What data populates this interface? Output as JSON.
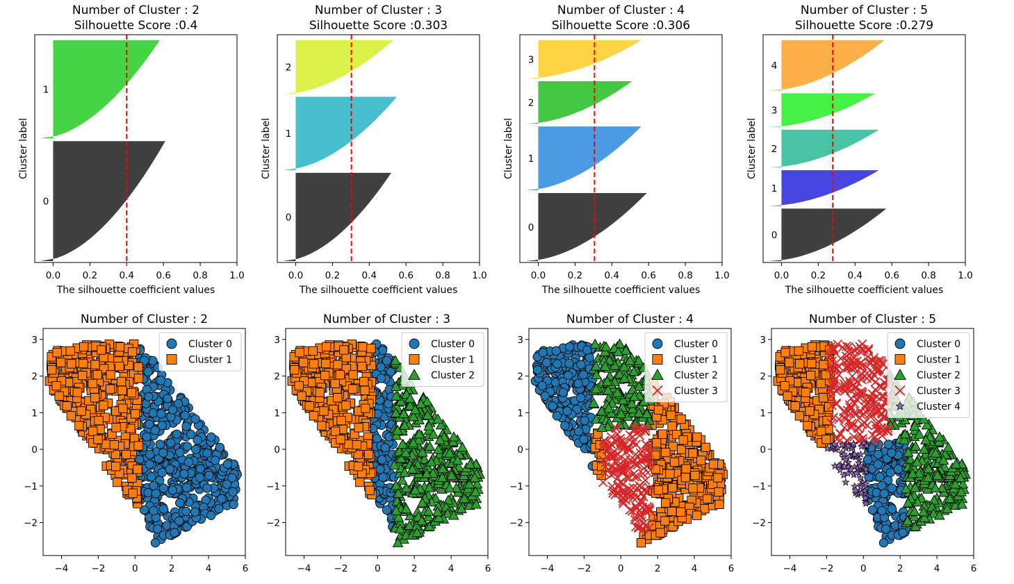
{
  "colors": {
    "cluster_marker_colors": [
      "#1f77b4",
      "#ff7f0e",
      "#2ca02c",
      "#d62728",
      "#9467bd"
    ],
    "threshold_line": "#ff0000"
  },
  "chart_data": [
    {
      "type": "area",
      "title_line1": "Number of Cluster : 2",
      "title_line2": "Silhouette Score :0.4",
      "xlabel": "The silhouette coefficient values",
      "ylabel": "Cluster label",
      "xlim": [
        -0.1,
        1.0
      ],
      "xticks": [
        "0.0",
        "0.2",
        "0.4",
        "0.6",
        "0.8",
        "1.0"
      ],
      "avg_score": 0.4,
      "series": [
        {
          "label": "0",
          "color": "#404040",
          "max_value": 0.61,
          "size": 0.55
        },
        {
          "label": "1",
          "color": "#44d444",
          "max_value": 0.58,
          "size": 0.45
        }
      ]
    },
    {
      "type": "area",
      "title_line1": "Number of Cluster : 3",
      "title_line2": "Silhouette Score :0.303",
      "xlabel": "The silhouette coefficient values",
      "ylabel": "Cluster label",
      "xlim": [
        -0.1,
        1.0
      ],
      "xticks": [
        "0.0",
        "0.2",
        "0.4",
        "0.6",
        "0.8",
        "1.0"
      ],
      "avg_score": 0.303,
      "series": [
        {
          "label": "0",
          "color": "#404040",
          "max_value": 0.52,
          "size": 0.41
        },
        {
          "label": "1",
          "color": "#48bfcc",
          "max_value": 0.55,
          "size": 0.34
        },
        {
          "label": "2",
          "color": "#dcf24a",
          "max_value": 0.53,
          "size": 0.25
        }
      ]
    },
    {
      "type": "area",
      "title_line1": "Number of Cluster : 4",
      "title_line2": "Silhouette Score :0.306",
      "xlabel": "The silhouette coefficient values",
      "ylabel": "Cluster label",
      "xlim": [
        -0.1,
        1.0
      ],
      "xticks": [
        "0.0",
        "0.2",
        "0.4",
        "0.6",
        "0.8",
        "1.0"
      ],
      "avg_score": 0.306,
      "series": [
        {
          "label": "0",
          "color": "#404040",
          "max_value": 0.59,
          "size": 0.32
        },
        {
          "label": "1",
          "color": "#4a9be2",
          "max_value": 0.56,
          "size": 0.3
        },
        {
          "label": "2",
          "color": "#44c844",
          "max_value": 0.51,
          "size": 0.2
        },
        {
          "label": "3",
          "color": "#fdd444",
          "max_value": 0.56,
          "size": 0.18
        }
      ]
    },
    {
      "type": "area",
      "title_line1": "Number of Cluster : 5",
      "title_line2": "Silhouette Score :0.279",
      "xlabel": "The silhouette coefficient values",
      "ylabel": "Cluster label",
      "xlim": [
        -0.1,
        1.0
      ],
      "xticks": [
        "0.0",
        "0.2",
        "0.4",
        "0.6",
        "0.8",
        "1.0"
      ],
      "avg_score": 0.279,
      "series": [
        {
          "label": "0",
          "color": "#404040",
          "max_value": 0.57,
          "size": 0.25
        },
        {
          "label": "1",
          "color": "#4646e0",
          "max_value": 0.53,
          "size": 0.17
        },
        {
          "label": "2",
          "color": "#48c4a4",
          "max_value": 0.53,
          "size": 0.18
        },
        {
          "label": "3",
          "color": "#44f244",
          "max_value": 0.51,
          "size": 0.16
        },
        {
          "label": "4",
          "color": "#fdb048",
          "max_value": 0.56,
          "size": 0.24
        }
      ]
    },
    {
      "type": "scatter",
      "title": "Number of Cluster : 2",
      "xlim": [
        -5,
        6
      ],
      "ylim": [
        -2.9,
        3.3
      ],
      "xticks": [
        "−4",
        "−2",
        "0",
        "2",
        "4",
        "6"
      ],
      "yticks": [
        "3",
        "2",
        "1",
        "0",
        "−1",
        "−2"
      ],
      "legend": [
        "Cluster 0",
        "Cluster 1"
      ],
      "legend_position": "top-right"
    },
    {
      "type": "scatter",
      "title": "Number of Cluster : 3",
      "xlim": [
        -5,
        6
      ],
      "ylim": [
        -2.9,
        3.3
      ],
      "xticks": [
        "−4",
        "−2",
        "0",
        "2",
        "4",
        "6"
      ],
      "yticks": [
        "3",
        "2",
        "1",
        "0",
        "−1",
        "−2"
      ],
      "legend": [
        "Cluster 0",
        "Cluster 1",
        "Cluster 2"
      ],
      "legend_position": "top-right"
    },
    {
      "type": "scatter",
      "title": "Number of Cluster : 4",
      "xlim": [
        -5,
        6
      ],
      "ylim": [
        -2.9,
        3.3
      ],
      "xticks": [
        "−4",
        "−2",
        "0",
        "2",
        "4",
        "6"
      ],
      "yticks": [
        "3",
        "2",
        "1",
        "0",
        "−1",
        "−2"
      ],
      "legend": [
        "Cluster 0",
        "Cluster 1",
        "Cluster 2",
        "Cluster 3"
      ],
      "legend_position": "top-right"
    },
    {
      "type": "scatter",
      "title": "Number of Cluster : 5",
      "xlim": [
        -5,
        6
      ],
      "ylim": [
        -2.9,
        3.3
      ],
      "xticks": [
        "−4",
        "−2",
        "0",
        "2",
        "4",
        "6"
      ],
      "yticks": [
        "3",
        "2",
        "1",
        "0",
        "−1",
        "−2"
      ],
      "legend": [
        "Cluster 0",
        "Cluster 1",
        "Cluster 2",
        "Cluster 3",
        "Cluster 4"
      ],
      "legend_position": "top-right"
    }
  ]
}
